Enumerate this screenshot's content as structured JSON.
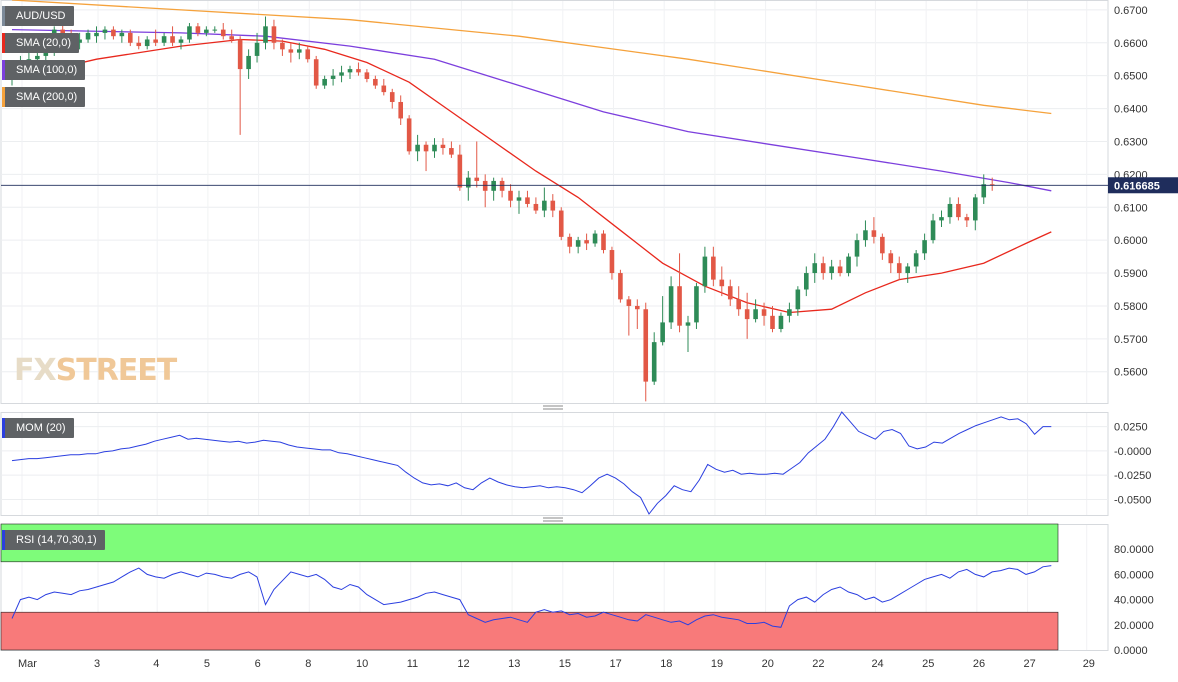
{
  "chart_data": [
    {
      "type": "candlestick",
      "title": "AUD/USD",
      "x_labels": [
        "Mar",
        "3",
        "4",
        "5",
        "6",
        "8",
        "10",
        "11",
        "12",
        "13",
        "15",
        "17",
        "18",
        "19",
        "20",
        "22",
        "24",
        "25",
        "26",
        "27",
        "29"
      ],
      "y_ticks": [
        "0.6700",
        "0.6600",
        "0.6500",
        "0.6400",
        "0.6300",
        "0.6200",
        "0.6100",
        "0.6000",
        "0.5900",
        "0.5800",
        "0.5700",
        "0.5600"
      ],
      "ylim": [
        0.5505,
        0.673
      ],
      "last_price": "0.616685",
      "last_price_value": 0.616685,
      "candles_ohlc": [
        [
          0.65,
          0.653,
          0.647,
          0.652
        ],
        [
          0.652,
          0.656,
          0.65,
          0.654
        ],
        [
          0.654,
          0.657,
          0.652,
          0.655
        ],
        [
          0.655,
          0.658,
          0.653,
          0.656
        ],
        [
          0.656,
          0.659,
          0.654,
          0.657
        ],
        [
          0.657,
          0.665,
          0.656,
          0.664
        ],
        [
          0.664,
          0.666,
          0.661,
          0.662
        ],
        [
          0.662,
          0.664,
          0.659,
          0.66
        ],
        [
          0.66,
          0.663,
          0.658,
          0.661
        ],
        [
          0.661,
          0.664,
          0.66,
          0.663
        ],
        [
          0.662,
          0.665,
          0.66,
          0.663
        ],
        [
          0.663,
          0.665,
          0.661,
          0.664
        ],
        [
          0.664,
          0.665,
          0.661,
          0.662
        ],
        [
          0.662,
          0.664,
          0.66,
          0.663
        ],
        [
          0.663,
          0.664,
          0.659,
          0.66
        ],
        [
          0.66,
          0.662,
          0.658,
          0.659
        ],
        [
          0.659,
          0.662,
          0.658,
          0.661
        ],
        [
          0.661,
          0.664,
          0.659,
          0.66
        ],
        [
          0.66,
          0.663,
          0.659,
          0.662
        ],
        [
          0.662,
          0.665,
          0.659,
          0.66
        ],
        [
          0.66,
          0.662,
          0.658,
          0.661
        ],
        [
          0.661,
          0.666,
          0.66,
          0.665
        ],
        [
          0.665,
          0.666,
          0.662,
          0.663
        ],
        [
          0.663,
          0.665,
          0.662,
          0.664
        ],
        [
          0.664,
          0.665,
          0.663,
          0.664
        ],
        [
          0.664,
          0.666,
          0.661,
          0.662
        ],
        [
          0.662,
          0.664,
          0.66,
          0.661
        ],
        [
          0.661,
          0.662,
          0.632,
          0.652
        ],
        [
          0.652,
          0.658,
          0.649,
          0.656
        ],
        [
          0.656,
          0.663,
          0.654,
          0.66
        ],
        [
          0.66,
          0.668,
          0.658,
          0.665
        ],
        [
          0.665,
          0.667,
          0.658,
          0.66
        ],
        [
          0.66,
          0.661,
          0.656,
          0.658
        ],
        [
          0.658,
          0.66,
          0.654,
          0.657
        ],
        [
          0.657,
          0.66,
          0.655,
          0.658
        ],
        [
          0.658,
          0.659,
          0.654,
          0.655
        ],
        [
          0.655,
          0.656,
          0.646,
          0.647
        ],
        [
          0.647,
          0.65,
          0.646,
          0.649
        ],
        [
          0.649,
          0.652,
          0.647,
          0.65
        ],
        [
          0.65,
          0.653,
          0.648,
          0.651
        ],
        [
          0.651,
          0.653,
          0.649,
          0.652
        ],
        [
          0.652,
          0.654,
          0.65,
          0.651
        ],
        [
          0.651,
          0.652,
          0.648,
          0.649
        ],
        [
          0.649,
          0.65,
          0.646,
          0.647
        ],
        [
          0.647,
          0.649,
          0.644,
          0.645
        ],
        [
          0.645,
          0.646,
          0.64,
          0.642
        ],
        [
          0.642,
          0.644,
          0.635,
          0.637
        ],
        [
          0.637,
          0.638,
          0.626,
          0.627
        ],
        [
          0.627,
          0.632,
          0.624,
          0.629
        ],
        [
          0.629,
          0.63,
          0.621,
          0.627
        ],
        [
          0.627,
          0.631,
          0.625,
          0.629
        ],
        [
          0.629,
          0.631,
          0.626,
          0.628
        ],
        [
          0.628,
          0.63,
          0.625,
          0.626
        ],
        [
          0.626,
          0.629,
          0.615,
          0.616
        ],
        [
          0.616,
          0.621,
          0.612,
          0.619
        ],
        [
          0.619,
          0.63,
          0.616,
          0.618
        ],
        [
          0.618,
          0.62,
          0.61,
          0.615
        ],
        [
          0.615,
          0.619,
          0.612,
          0.618
        ],
        [
          0.618,
          0.619,
          0.613,
          0.615
        ],
        [
          0.615,
          0.617,
          0.61,
          0.612
        ],
        [
          0.612,
          0.615,
          0.608,
          0.613
        ],
        [
          0.613,
          0.615,
          0.61,
          0.611
        ],
        [
          0.611,
          0.613,
          0.608,
          0.609
        ],
        [
          0.609,
          0.616,
          0.607,
          0.612
        ],
        [
          0.612,
          0.614,
          0.607,
          0.609
        ],
        [
          0.609,
          0.61,
          0.6,
          0.601
        ],
        [
          0.601,
          0.602,
          0.596,
          0.598
        ],
        [
          0.598,
          0.601,
          0.596,
          0.6
        ],
        [
          0.6,
          0.602,
          0.597,
          0.599
        ],
        [
          0.599,
          0.603,
          0.598,
          0.602
        ],
        [
          0.602,
          0.603,
          0.596,
          0.597
        ],
        [
          0.597,
          0.598,
          0.588,
          0.59
        ],
        [
          0.59,
          0.591,
          0.581,
          0.582
        ],
        [
          0.582,
          0.583,
          0.571,
          0.58
        ],
        [
          0.58,
          0.582,
          0.573,
          0.579
        ],
        [
          0.579,
          0.581,
          0.551,
          0.557
        ],
        [
          0.557,
          0.572,
          0.556,
          0.569
        ],
        [
          0.569,
          0.583,
          0.568,
          0.575
        ],
        [
          0.575,
          0.589,
          0.573,
          0.586
        ],
        [
          0.586,
          0.596,
          0.572,
          0.574
        ],
        [
          0.574,
          0.577,
          0.566,
          0.575
        ],
        [
          0.575,
          0.587,
          0.573,
          0.586
        ],
        [
          0.586,
          0.598,
          0.584,
          0.595
        ],
        [
          0.595,
          0.598,
          0.586,
          0.588
        ],
        [
          0.588,
          0.592,
          0.583,
          0.586
        ],
        [
          0.586,
          0.588,
          0.58,
          0.582
        ],
        [
          0.582,
          0.586,
          0.577,
          0.579
        ],
        [
          0.579,
          0.584,
          0.57,
          0.576
        ],
        [
          0.576,
          0.582,
          0.575,
          0.579
        ],
        [
          0.579,
          0.581,
          0.574,
          0.577
        ],
        [
          0.577,
          0.58,
          0.572,
          0.573
        ],
        [
          0.573,
          0.578,
          0.572,
          0.577
        ],
        [
          0.577,
          0.581,
          0.575,
          0.579
        ],
        [
          0.579,
          0.586,
          0.577,
          0.585
        ],
        [
          0.585,
          0.592,
          0.583,
          0.59
        ],
        [
          0.59,
          0.596,
          0.587,
          0.593
        ],
        [
          0.593,
          0.595,
          0.588,
          0.59
        ],
        [
          0.59,
          0.594,
          0.588,
          0.592
        ],
        [
          0.592,
          0.594,
          0.589,
          0.59
        ],
        [
          0.59,
          0.596,
          0.589,
          0.595
        ],
        [
          0.595,
          0.602,
          0.592,
          0.6
        ],
        [
          0.6,
          0.606,
          0.598,
          0.603
        ],
        [
          0.603,
          0.607,
          0.599,
          0.601
        ],
        [
          0.601,
          0.602,
          0.594,
          0.596
        ],
        [
          0.596,
          0.597,
          0.59,
          0.593
        ],
        [
          0.593,
          0.595,
          0.588,
          0.59
        ],
        [
          0.59,
          0.593,
          0.587,
          0.592
        ],
        [
          0.592,
          0.597,
          0.59,
          0.596
        ],
        [
          0.596,
          0.602,
          0.594,
          0.6
        ],
        [
          0.6,
          0.608,
          0.599,
          0.606
        ],
        [
          0.606,
          0.609,
          0.604,
          0.607
        ],
        [
          0.607,
          0.613,
          0.605,
          0.611
        ],
        [
          0.611,
          0.613,
          0.606,
          0.607
        ],
        [
          0.607,
          0.608,
          0.604,
          0.606
        ],
        [
          0.606,
          0.614,
          0.603,
          0.613
        ],
        [
          0.613,
          0.62,
          0.611,
          0.617
        ],
        [
          0.617,
          0.619,
          0.615,
          0.6167
        ]
      ],
      "series": [
        {
          "name": "SMA (20,0)",
          "color": "#e8281d",
          "points": [
            [
              0,
              0.649
            ],
            [
              10,
              0.655
            ],
            [
              20,
              0.659
            ],
            [
              27,
              0.661
            ],
            [
              32,
              0.6605
            ],
            [
              37,
              0.658
            ],
            [
              42,
              0.654
            ],
            [
              47,
              0.648
            ],
            [
              52,
              0.639
            ],
            [
              57,
              0.63
            ],
            [
              62,
              0.621
            ],
            [
              67,
              0.613
            ],
            [
              72,
              0.603
            ],
            [
              77,
              0.593
            ],
            [
              82,
              0.586
            ],
            [
              87,
              0.581
            ],
            [
              92,
              0.578
            ],
            [
              97,
              0.579
            ],
            [
              101,
              0.584
            ],
            [
              105,
              0.588
            ],
            [
              110,
              0.59
            ],
            [
              115,
              0.593
            ],
            [
              120,
              0.599
            ],
            [
              123,
              0.6025
            ]
          ]
        },
        {
          "name": "SMA (100,0)",
          "color": "#7c3fdd",
          "points": [
            [
              0,
              0.664
            ],
            [
              20,
              0.663
            ],
            [
              30,
              0.662
            ],
            [
              40,
              0.659
            ],
            [
              50,
              0.655
            ],
            [
              60,
              0.647
            ],
            [
              70,
              0.639
            ],
            [
              80,
              0.633
            ],
            [
              90,
              0.629
            ],
            [
              100,
              0.625
            ],
            [
              110,
              0.621
            ],
            [
              118,
              0.6175
            ],
            [
              123,
              0.615
            ]
          ]
        },
        {
          "name": "SMA (200,0)",
          "color": "#f5a23c",
          "points": [
            [
              0,
              0.673
            ],
            [
              20,
              0.67
            ],
            [
              40,
              0.667
            ],
            [
              60,
              0.662
            ],
            [
              80,
              0.655
            ],
            [
              100,
              0.647
            ],
            [
              115,
              0.641
            ],
            [
              123,
              0.6385
            ]
          ]
        }
      ]
    },
    {
      "type": "line",
      "title": "MOM (20)",
      "y_ticks": [
        "0.0250",
        "-0.0000",
        "-0.0250",
        "-0.0500"
      ],
      "ylim": [
        -0.066,
        0.04
      ],
      "series": [
        {
          "name": "MOM (20)",
          "color": "#2b3fe0",
          "x_end": 123,
          "values": [
            -0.01,
            -0.009,
            -0.008,
            -0.008,
            -0.007,
            -0.006,
            -0.005,
            -0.004,
            -0.004,
            -0.003,
            -0.003,
            -0.001,
            0.0,
            0.002,
            0.003,
            0.005,
            0.007,
            0.01,
            0.012,
            0.014,
            0.016,
            0.012,
            0.013,
            0.012,
            0.011,
            0.01,
            0.009,
            0.01,
            0.008,
            0.009,
            0.011,
            0.01,
            0.009,
            0.006,
            0.004,
            0.003,
            0.002,
            0.001,
            0.001,
            -0.002,
            -0.003,
            -0.005,
            -0.007,
            -0.009,
            -0.011,
            -0.013,
            -0.015,
            -0.022,
            -0.028,
            -0.033,
            -0.035,
            -0.034,
            -0.036,
            -0.033,
            -0.038,
            -0.04,
            -0.033,
            -0.028,
            -0.032,
            -0.035,
            -0.037,
            -0.038,
            -0.037,
            -0.036,
            -0.038,
            -0.037,
            -0.038,
            -0.04,
            -0.043,
            -0.036,
            -0.028,
            -0.024,
            -0.028,
            -0.034,
            -0.042,
            -0.048,
            -0.065,
            -0.054,
            -0.046,
            -0.036,
            -0.04,
            -0.042,
            -0.03,
            -0.014,
            -0.019,
            -0.022,
            -0.02,
            -0.024,
            -0.023,
            -0.024,
            -0.024,
            -0.023,
            -0.024,
            -0.018,
            -0.012,
            -0.002,
            0.005,
            0.012,
            0.025,
            0.04,
            0.03,
            0.02,
            0.016,
            0.012,
            0.02,
            0.022,
            0.018,
            0.005,
            0.002,
            0.004,
            0.009,
            0.008,
            0.013,
            0.018,
            0.022,
            0.026,
            0.029,
            0.032,
            0.035,
            0.032,
            0.033,
            0.028,
            0.017,
            0.025,
            0.025
          ]
        }
      ]
    },
    {
      "type": "line",
      "title": "RSI (14,70,30,1)",
      "y_ticks": [
        "80.0000",
        "60.0000",
        "40.0000",
        "20.0000",
        "0.0000"
      ],
      "ylim": [
        0,
        100
      ],
      "bands": [
        {
          "from": 70,
          "to": 100,
          "color": "#7efc7a"
        },
        {
          "from": 0,
          "to": 30,
          "color": "#f87a7a"
        }
      ],
      "series": [
        {
          "name": "RSI",
          "color": "#2b3fe0",
          "x_end": 123,
          "values": [
            25,
            40,
            42,
            40,
            44,
            46,
            45,
            44,
            47,
            48,
            50,
            52,
            54,
            58,
            62,
            65,
            60,
            58,
            57,
            60,
            62,
            60,
            58,
            61,
            60,
            58,
            57,
            60,
            62,
            58,
            36,
            48,
            55,
            62,
            60,
            58,
            60,
            56,
            50,
            48,
            52,
            50,
            44,
            40,
            36,
            37,
            38,
            40,
            42,
            45,
            46,
            44,
            42,
            40,
            28,
            25,
            22,
            24,
            25,
            26,
            24,
            22,
            30,
            32,
            30,
            31,
            28,
            29,
            26,
            27,
            30,
            28,
            26,
            24,
            23,
            28,
            26,
            24,
            22,
            23,
            20,
            24,
            27,
            28,
            26,
            25,
            24,
            21,
            21,
            22,
            19,
            18,
            35,
            40,
            42,
            38,
            44,
            48,
            50,
            46,
            44,
            40,
            42,
            38,
            40,
            44,
            48,
            52,
            56,
            58,
            60,
            57,
            62,
            64,
            60,
            58,
            62,
            63,
            65,
            64,
            60,
            62,
            66,
            67
          ]
        }
      ]
    }
  ]
}
